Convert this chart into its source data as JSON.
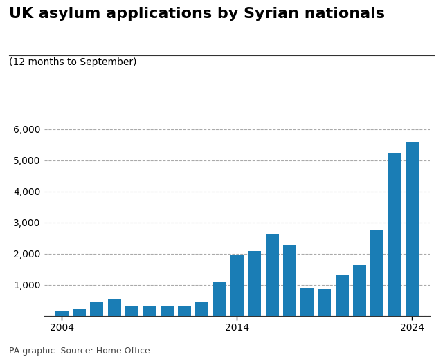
{
  "title": "UK asylum applications by Syrian nationals",
  "subtitle": "(12 months to September)",
  "source": "PA graphic. Source: Home Office",
  "bar_color": "#1a7db5",
  "background_color": "#ffffff",
  "years": [
    2004,
    2005,
    2006,
    2007,
    2008,
    2009,
    2010,
    2011,
    2012,
    2013,
    2014,
    2015,
    2016,
    2017,
    2018,
    2019,
    2020,
    2021,
    2022,
    2023,
    2024
  ],
  "values": [
    175,
    210,
    430,
    560,
    330,
    310,
    300,
    295,
    430,
    1075,
    1970,
    2090,
    2640,
    2280,
    880,
    860,
    1310,
    1640,
    2740,
    5230,
    5580
  ],
  "ylim": [
    0,
    6000
  ],
  "yticks": [
    0,
    1000,
    2000,
    3000,
    4000,
    5000,
    6000
  ],
  "xtick_labels": [
    "2004",
    "2014",
    "2024"
  ],
  "xtick_positions": [
    2004,
    2014,
    2024
  ],
  "grid_color": "#aaaaaa",
  "title_fontsize": 16,
  "subtitle_fontsize": 10,
  "source_fontsize": 9,
  "tick_fontsize": 10
}
